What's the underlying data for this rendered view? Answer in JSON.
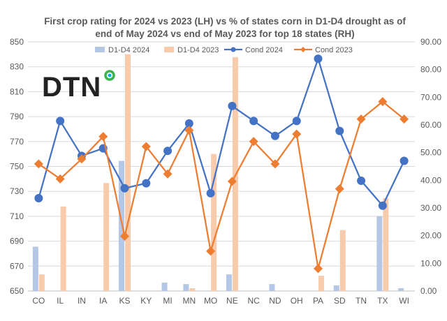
{
  "chart_data": {
    "type": "bar+line",
    "title_lines": [
      "First crop rating for 2024 vs 2023 (LH) vs % of states corn in D1-D4 drought as of",
      "end of May 2024 vs end of May 2023 for top 18 states (RH)"
    ],
    "categories": [
      "CO",
      "IL",
      "IN",
      "IA",
      "KS",
      "KY",
      "MI",
      "MN",
      "MO",
      "NE",
      "NC",
      "ND",
      "OH",
      "PA",
      "SD",
      "TN",
      "TX",
      "WI"
    ],
    "left_axis": {
      "min": 650,
      "max": 850,
      "ticks": [
        650,
        670,
        690,
        710,
        730,
        750,
        770,
        790,
        810,
        830,
        850
      ]
    },
    "right_axis": {
      "min": 0,
      "max": 90,
      "ticks": [
        "0.00",
        "10.00",
        "20.00",
        "30.00",
        "40.00",
        "50.00",
        "60.00",
        "70.00",
        "80.00",
        "90.00"
      ]
    },
    "series": [
      {
        "name": "D1-D4 2024",
        "kind": "bar",
        "axis": "right",
        "color": "#b4c7e7",
        "values": [
          16,
          0,
          0,
          0,
          47,
          0,
          3,
          2.5,
          0,
          6,
          0,
          2.5,
          0,
          0,
          2,
          0,
          27,
          1
        ]
      },
      {
        "name": "D1-D4 2023",
        "kind": "bar",
        "axis": "right",
        "color": "#f8cbad",
        "values": [
          6,
          30.5,
          0,
          39,
          85.5,
          0,
          0,
          1,
          49.5,
          84.5,
          0,
          0,
          0,
          5.5,
          22,
          0,
          33.5,
          0
        ]
      },
      {
        "name": "Cond 2024",
        "kind": "line",
        "axis": "left",
        "color": "#4472c4",
        "marker": "circle",
        "values": [
          724.5,
          786.5,
          758.5,
          764.5,
          732.5,
          736.5,
          762.5,
          784.5,
          728.5,
          798.5,
          786.5,
          774.5,
          786.5,
          836.5,
          778.5,
          738.5,
          718.5,
          754.5
        ]
      },
      {
        "name": "Cond 2023",
        "kind": "line",
        "axis": "left",
        "color": "#ed7d31",
        "marker": "diamond",
        "values": [
          752,
          740,
          756,
          774,
          694,
          766,
          744,
          779,
          682,
          738,
          770,
          752,
          776,
          668,
          732,
          788,
          802,
          788
        ]
      }
    ],
    "legend_position": "top"
  },
  "logo": {
    "text": "DTN"
  }
}
